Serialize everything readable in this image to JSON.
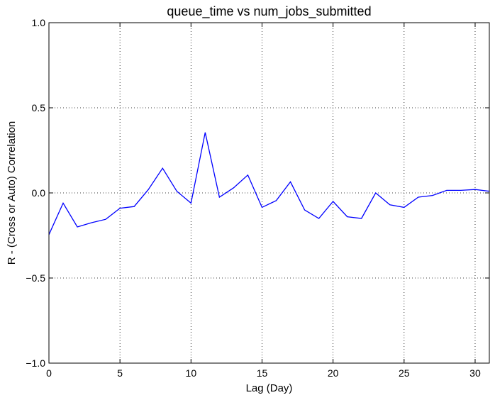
{
  "chart_data": {
    "type": "line",
    "title": "queue_time vs num_jobs_submitted",
    "xlabel": "Lag (Day)",
    "ylabel": "R - (Cross or Auto) Correlation",
    "xlim": [
      0,
      31
    ],
    "ylim": [
      -1.0,
      1.0
    ],
    "x_ticks": [
      0,
      5,
      10,
      15,
      20,
      25,
      30
    ],
    "x_tick_labels": [
      "0",
      "5",
      "10",
      "15",
      "20",
      "25",
      "30"
    ],
    "y_ticks": [
      -1.0,
      -0.5,
      0.0,
      0.5,
      1.0
    ],
    "y_tick_labels": [
      "−1.0",
      "−0.5",
      "0.0",
      "0.5",
      "1.0"
    ],
    "grid": true,
    "series": [
      {
        "color": "#0000ff",
        "x": [
          0,
          1,
          2,
          3,
          4,
          5,
          6,
          7,
          8,
          9,
          10,
          11,
          12,
          13,
          14,
          15,
          16,
          17,
          18,
          19,
          20,
          21,
          22,
          23,
          24,
          25,
          26,
          27,
          28,
          29,
          30,
          31
        ],
        "y": [
          -0.245,
          -0.06,
          -0.2,
          -0.175,
          -0.155,
          -0.09,
          -0.08,
          0.02,
          0.145,
          0.01,
          -0.06,
          0.355,
          -0.025,
          0.03,
          0.105,
          -0.085,
          -0.045,
          0.065,
          -0.1,
          -0.15,
          -0.05,
          -0.14,
          -0.15,
          0.0,
          -0.07,
          -0.085,
          -0.025,
          -0.015,
          0.015,
          0.015,
          0.02,
          0.01
        ]
      }
    ]
  }
}
